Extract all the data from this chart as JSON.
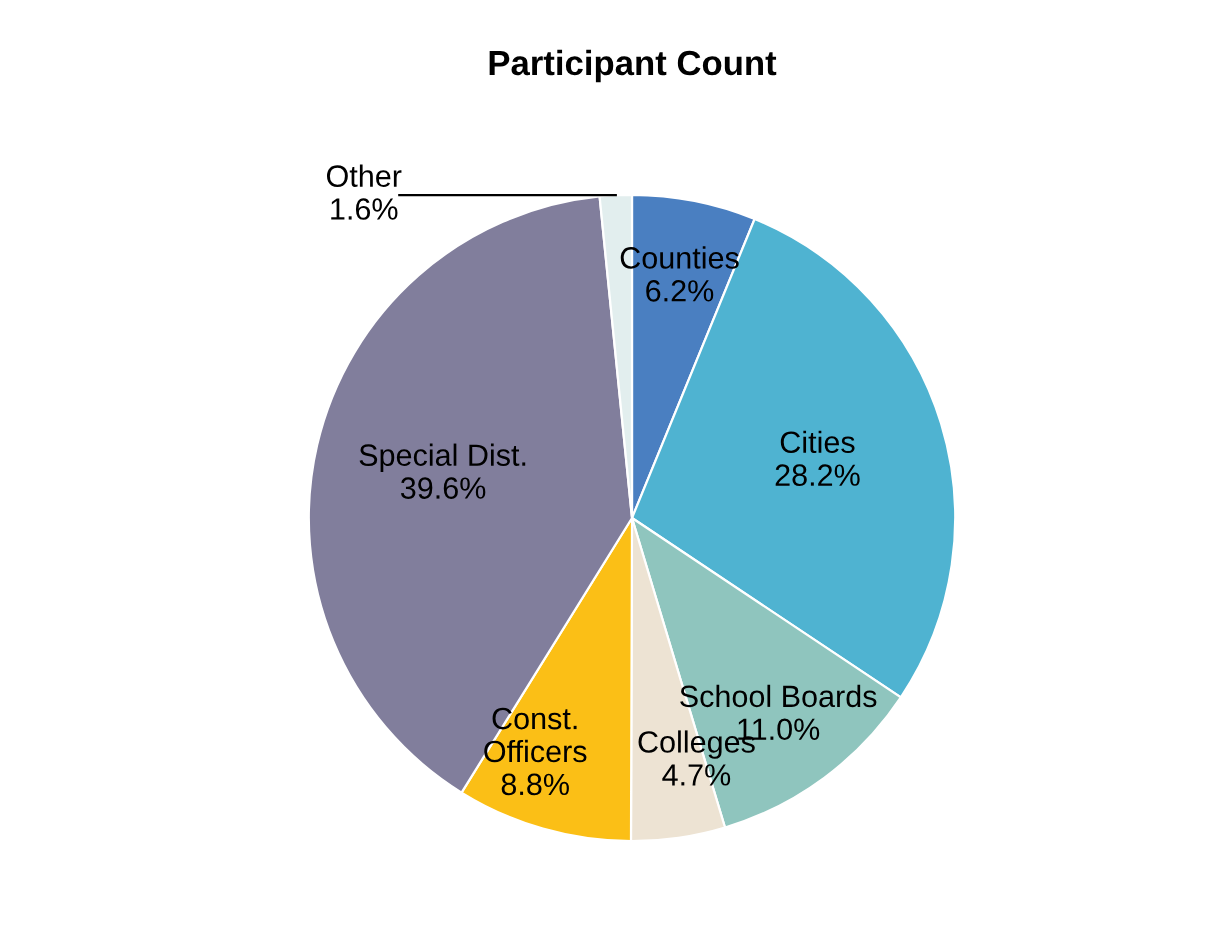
{
  "chart_data": {
    "type": "pie",
    "title": "Participant Count",
    "categories": [
      "Counties",
      "Cities",
      "School Boards",
      "Colleges",
      "Const.\nOfficers",
      "Special Dist.",
      "Other"
    ],
    "values": [
      6.2,
      28.2,
      11.0,
      4.7,
      8.8,
      39.6,
      1.6
    ],
    "colors": [
      "#4a7fc1",
      "#4fb3d1",
      "#8fc5be",
      "#ede3d3",
      "#fbbf16",
      "#817e9c",
      "#e2eeee"
    ],
    "value_labels": [
      "6.2%",
      "28.2%",
      "11.0%",
      "4.7%",
      "8.8%",
      "39.6%",
      "1.6%"
    ],
    "legend": false
  }
}
